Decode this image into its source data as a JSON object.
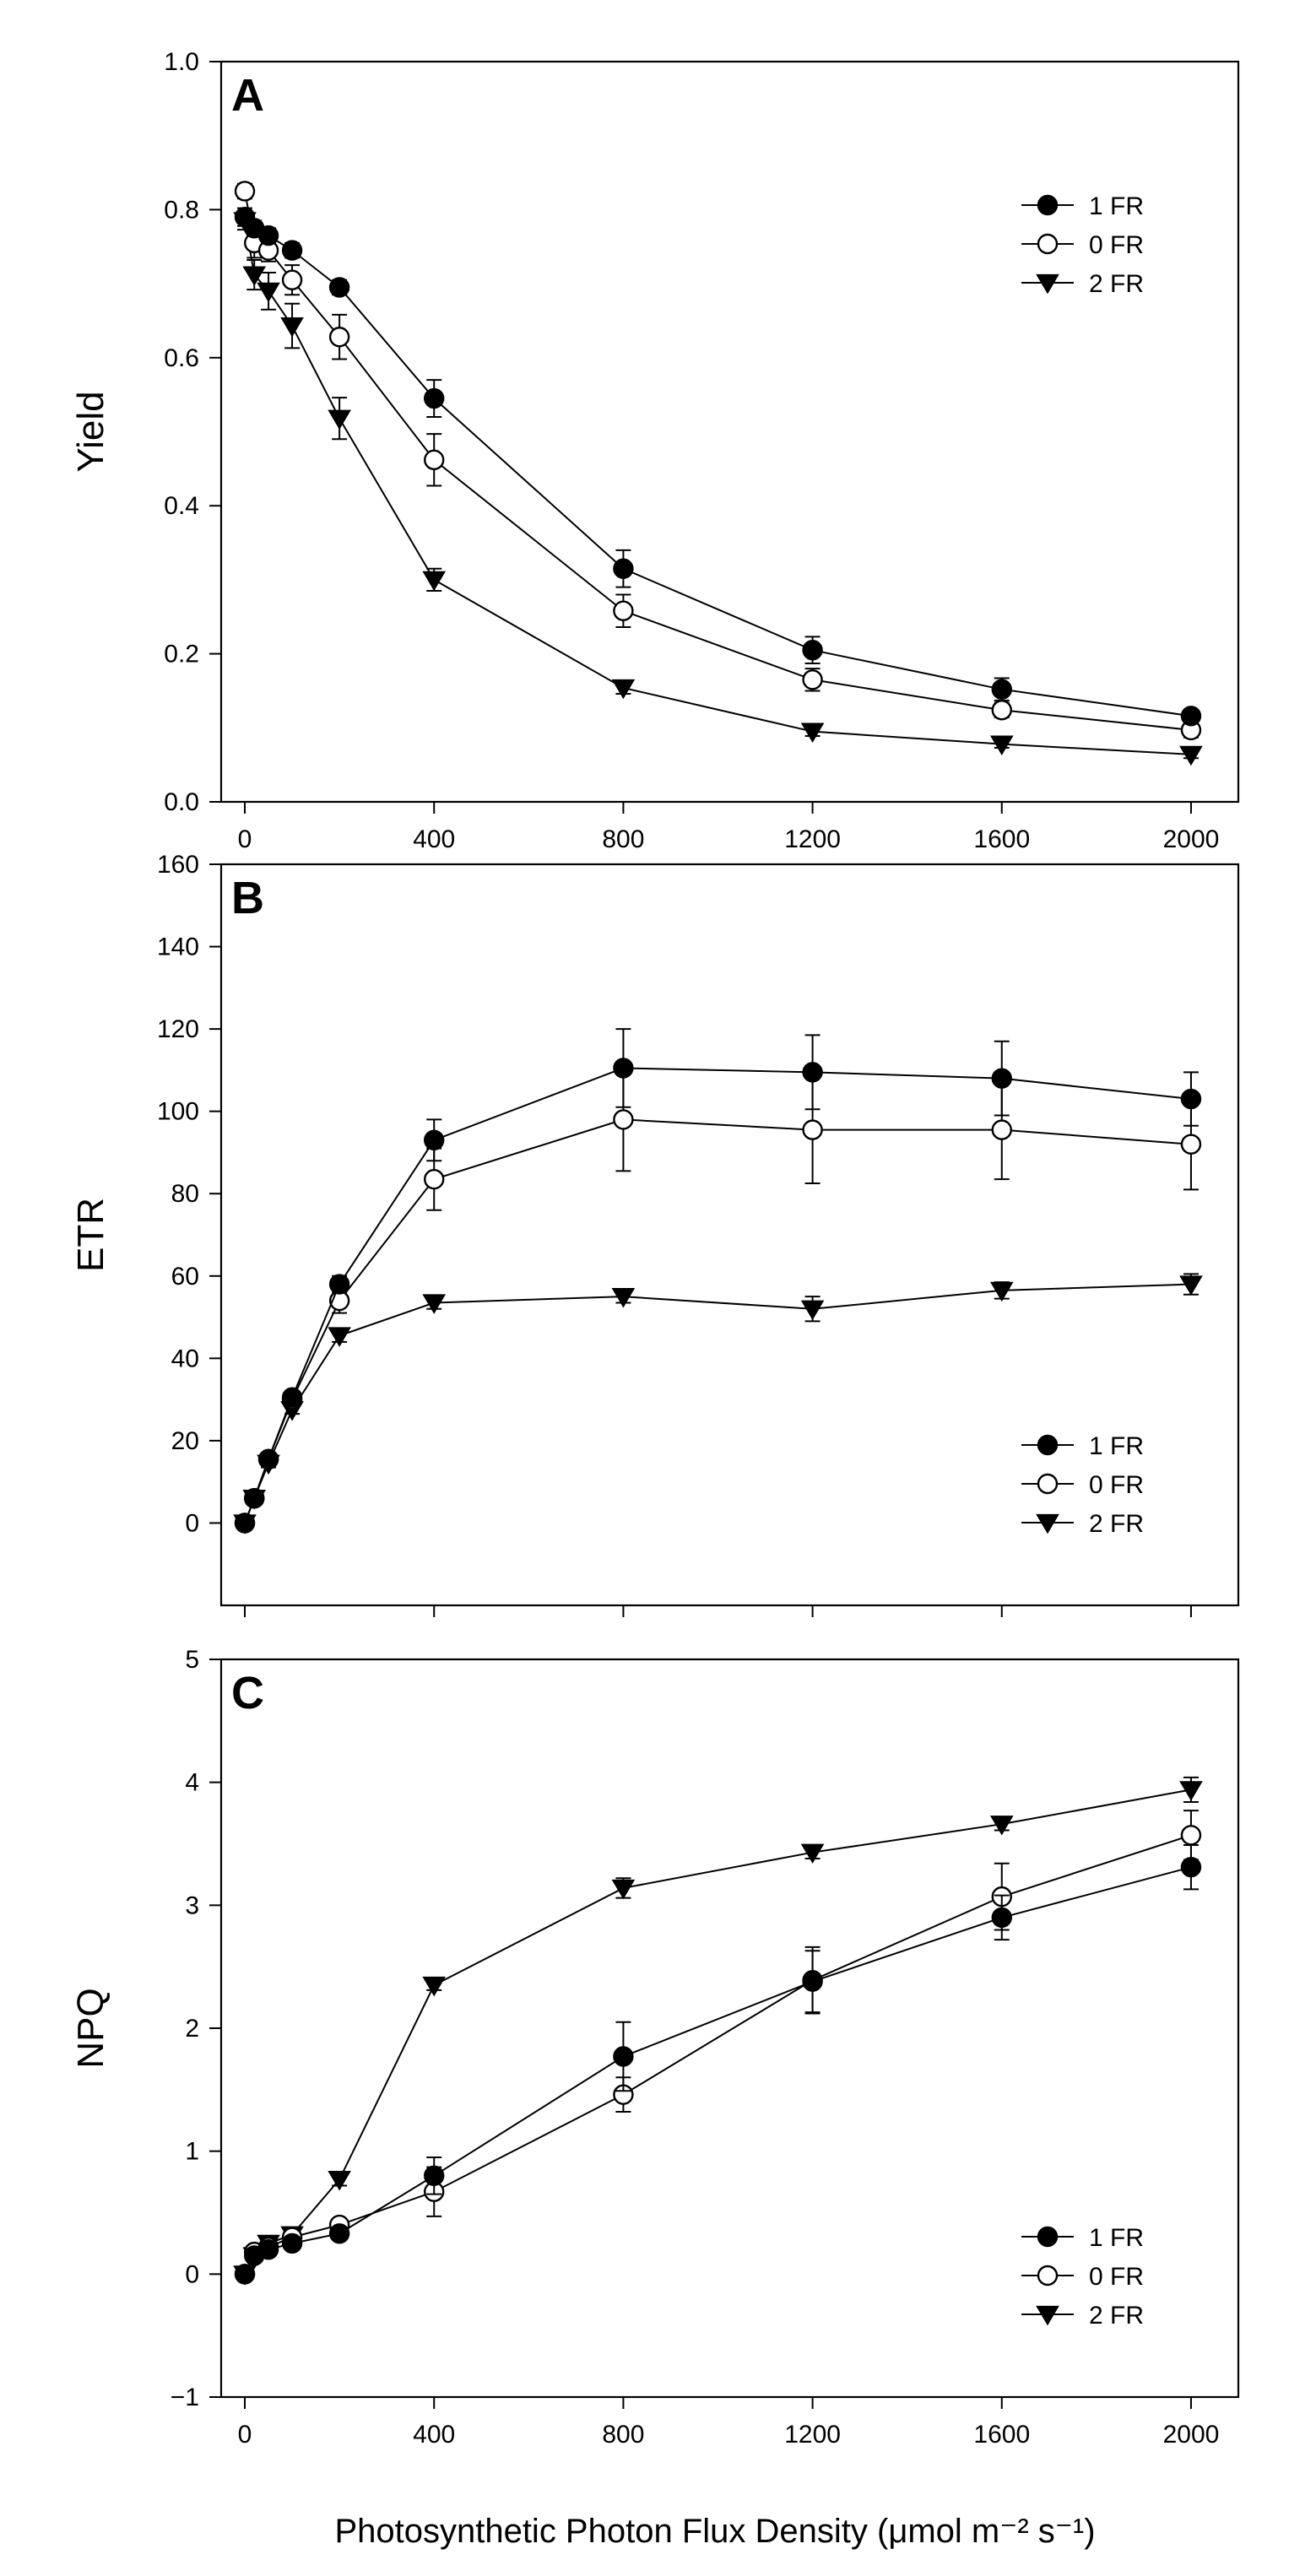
{
  "figure": {
    "xlabel": "Photosynthetic Photon Flux Density (μmol m⁻² s⁻¹)"
  },
  "chart_data": [
    {
      "type": "line",
      "panel_label": "A",
      "ylabel": "Yield",
      "xlim": [
        -50,
        2100
      ],
      "ylim": [
        0.0,
        1.0
      ],
      "xticks": [
        0,
        400,
        800,
        1200,
        1600,
        2000
      ],
      "xtick_labels": [
        "0",
        "400",
        "800",
        "1200",
        "1600",
        "2000"
      ],
      "yticks": [
        0.0,
        0.2,
        0.4,
        0.6,
        0.8,
        1.0
      ],
      "ytick_labels": [
        "0.0",
        "0.2",
        "0.4",
        "0.6",
        "0.8",
        "1.0"
      ],
      "legend_position": "top-right",
      "x": [
        0,
        20,
        50,
        100,
        200,
        400,
        800,
        1200,
        1600,
        2000
      ],
      "series": [
        {
          "name": "1 FR",
          "marker": "filled-circle",
          "values": [
            0.79,
            0.775,
            0.765,
            0.745,
            0.695,
            0.545,
            0.315,
            0.205,
            0.152,
            0.116
          ],
          "errors": [
            0.012,
            0.01,
            0.01,
            0.01,
            0.01,
            0.025,
            0.025,
            0.018,
            0.015,
            0.008
          ]
        },
        {
          "name": "0 FR",
          "marker": "open-circle",
          "values": [
            0.825,
            0.755,
            0.745,
            0.705,
            0.628,
            0.462,
            0.258,
            0.165,
            0.124,
            0.097
          ],
          "errors": [
            0.01,
            0.02,
            0.015,
            0.02,
            0.03,
            0.035,
            0.022,
            0.015,
            0.01,
            0.01
          ]
        },
        {
          "name": "2 FR",
          "marker": "filled-triangle-down",
          "values": [
            0.785,
            0.712,
            0.69,
            0.643,
            0.518,
            0.3,
            0.154,
            0.095,
            0.078,
            0.064
          ],
          "errors": [
            0.012,
            0.02,
            0.025,
            0.03,
            0.028,
            0.015,
            0.008,
            0.006,
            0.005,
            0.005
          ]
        }
      ]
    },
    {
      "type": "line",
      "panel_label": "B",
      "ylabel": "ETR",
      "xlim": [
        -50,
        2100
      ],
      "ylim": [
        -20,
        160
      ],
      "xticks": [
        0,
        400,
        800,
        1200,
        1600,
        2000
      ],
      "xtick_labels": [
        "",
        "",
        "",
        "",
        "",
        ""
      ],
      "yticks": [
        0,
        20,
        40,
        60,
        80,
        100,
        120,
        140,
        160
      ],
      "ytick_labels": [
        "0",
        "20",
        "40",
        "60",
        "80",
        "100",
        "120",
        "140",
        "160"
      ],
      "legend_position": "bottom-right",
      "x": [
        0,
        20,
        50,
        100,
        200,
        400,
        800,
        1200,
        1600,
        2000
      ],
      "series": [
        {
          "name": "1 FR",
          "marker": "filled-circle",
          "values": [
            0,
            6,
            15.5,
            30.5,
            58,
            93,
            110.5,
            109.5,
            108,
            103
          ],
          "errors": [
            0.5,
            1,
            1,
            1.5,
            2,
            5,
            9.5,
            9,
            9,
            6.5
          ]
        },
        {
          "name": "0 FR",
          "marker": "open-circle",
          "values": [
            0,
            6,
            15.5,
            30,
            54,
            83.5,
            98,
            95.5,
            95.5,
            92
          ],
          "errors": [
            0.5,
            1,
            1,
            1.5,
            3,
            7.5,
            12.5,
            13,
            12,
            11
          ]
        },
        {
          "name": "2 FR",
          "marker": "filled-triangle-down",
          "values": [
            0,
            6,
            14.5,
            27.5,
            45.5,
            53.5,
            55,
            52,
            56.5,
            58
          ],
          "errors": [
            0.5,
            1,
            1,
            1,
            1.5,
            1.5,
            1.5,
            3,
            2,
            2.5
          ]
        }
      ]
    },
    {
      "type": "line",
      "panel_label": "C",
      "ylabel": "NPQ",
      "xlim": [
        -50,
        2100
      ],
      "ylim": [
        -1,
        5
      ],
      "xticks": [
        0,
        400,
        800,
        1200,
        1600,
        2000
      ],
      "xtick_labels": [
        "0",
        "400",
        "800",
        "1200",
        "1600",
        "2000"
      ],
      "yticks": [
        -1,
        0,
        1,
        2,
        3,
        4,
        5
      ],
      "ytick_labels": [
        "−1",
        "0",
        "1",
        "2",
        "3",
        "4",
        "5"
      ],
      "legend_position": "bottom-right",
      "x": [
        0,
        20,
        50,
        100,
        200,
        400,
        800,
        1200,
        1600,
        2000
      ],
      "series": [
        {
          "name": "1 FR",
          "marker": "filled-circle",
          "values": [
            0,
            0.15,
            0.2,
            0.25,
            0.33,
            0.8,
            1.77,
            2.38,
            2.9,
            3.31
          ],
          "errors": [
            0.02,
            0.03,
            0.03,
            0.05,
            0.05,
            0.15,
            0.28,
            0.25,
            0.18,
            0.18
          ]
        },
        {
          "name": "0 FR",
          "marker": "open-circle",
          "values": [
            0,
            0.18,
            0.22,
            0.3,
            0.4,
            0.67,
            1.46,
            2.39,
            3.07,
            3.57
          ],
          "errors": [
            0.02,
            0.03,
            0.03,
            0.05,
            0.05,
            0.2,
            0.14,
            0.27,
            0.27,
            0.2
          ]
        },
        {
          "name": "2 FR",
          "marker": "filled-triangle-down",
          "values": [
            0,
            0.15,
            0.25,
            0.32,
            0.77,
            2.35,
            3.14,
            3.43,
            3.66,
            3.94
          ],
          "errors": [
            0.02,
            0.03,
            0.03,
            0.05,
            0.05,
            0.04,
            0.08,
            0.05,
            0.05,
            0.1
          ]
        }
      ]
    }
  ]
}
